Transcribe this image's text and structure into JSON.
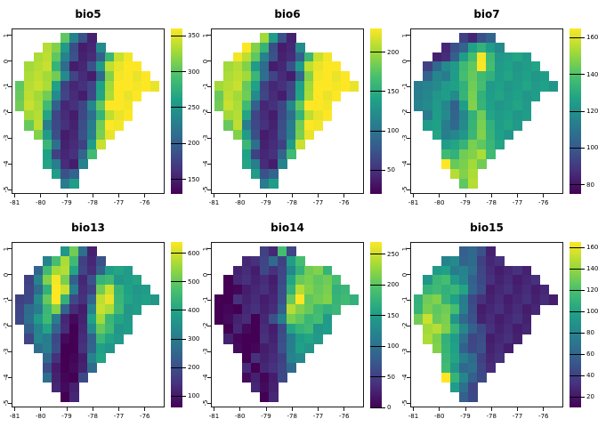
{
  "figure_bg": "#ffffff",
  "colormap": {
    "name": "viridis",
    "stops": [
      "#440154",
      "#46327e",
      "#365c8d",
      "#277f8e",
      "#1fa187",
      "#4ac16d",
      "#a0da39",
      "#fde725"
    ]
  },
  "axes": {
    "x_ticks": [
      -81,
      -80,
      -79,
      -78,
      -77,
      -76
    ],
    "x_range": [
      -81.12,
      -75.24
    ],
    "y_ticks": [
      1,
      0,
      -1,
      -2,
      -3,
      -4,
      -5
    ],
    "y_range": [
      -5.16,
      1.26
    ]
  },
  "grid_encoding": "each panel grid: 16 rows x 16 chars; '.' = no data (outside Ecuador); digit 0-9 = value level mapped linearly from vmin (0) to vmax (9)",
  "chart_data": [
    {
      "type": "heatmap",
      "title": "bio5",
      "vmin": 130,
      "vmax": 360,
      "legend_ticks": [
        350,
        300,
        250,
        200,
        150
      ],
      "grid": [
        ".....7421.......",
        "...8752114......",
        "..88742113689...",
        ".8886311258999..",
        ".88874211379999.",
        "7888521125899999",
        "78874211258999..",
        "7886311247999...",
        ".885211236899...",
        ".78421124799....",
        "..752112479.....",
        "...6311258......",
        "...521136.......",
        "...54114........",
        "....523.........",
        ".....45........."
      ]
    },
    {
      "type": "heatmap",
      "title": "bio6",
      "vmin": 20,
      "vmax": 230,
      "legend_ticks": [
        200,
        150,
        100,
        50
      ],
      "grid": [
        ".....8521.......",
        "...9762114......",
        "..98742113689...",
        ".8875311258999..",
        ".88863211379999.",
        "8887521125899999",
        "78874211258999..",
        "7886311247999...",
        ".885211236899...",
        ".78421124799....",
        "..752112479.....",
        "...6311258......",
        "...521136.......",
        "...54114........",
        "....523.........",
        ".....45........."
      ]
    },
    {
      "type": "heatmap",
      "title": "bio7",
      "vmin": 75,
      "vmax": 165,
      "legend_ticks": [
        160,
        140,
        120,
        100,
        80
      ],
      "grid": [
        ".....2123.......",
        "...1235654......",
        "..11356965555...",
        ".2345679655555..",
        ".34456766555555.",
        "4445567655555555",
        "44554676555555..",
        "4454357655555...",
        ".454346755555...",
        ".55434676555....",
        "..544567655.....",
        "...5567765......",
        "...667786.......",
        "...97787........",
        "....878.........",
        ".....78........."
      ]
    },
    {
      "type": "heatmap",
      "title": "bio13",
      "vmin": 60,
      "vmax": 640,
      "legend_ticks": [
        600,
        500,
        400,
        300,
        200,
        100
      ],
      "grid": [
        ".....5731.......",
        "...4686212......",
        "..36885213555...",
        ".2479731266555..",
        ".23698412786555.",
        "2247962138965555",
        "23467311488655..",
        "2356410158655...",
        ".345310147655...",
        ".24420013655....",
        "..342001355.....",
        "...3100145......",
        "...210013.......",
        "...31002........",
        "....101.........",
        ".....01........."
      ]
    },
    {
      "type": "heatmap",
      "title": "bio14",
      "vmin": 0,
      "vmax": 270,
      "legend_ticks": [
        250,
        200,
        150,
        100,
        50,
        0
      ],
      "grid": [
        ".....2162.......",
        "...1123256......",
        "..11121246776...",
        ".0111112577776..",
        ".00111126877766.",
        "0011111279777666",
        "00011113877666..",
        "0011012477665...",
        ".010011256655...",
        ".10001124555....",
        "..000112455.....",
        "...0111244......",
        "...101123.......",
        "...01012........",
        "....101.........",
        ".....01........."
      ]
    },
    {
      "type": "heatmap",
      "title": "bio15",
      "vmin": 10,
      "vmax": 165,
      "legend_ticks": [
        160,
        140,
        120,
        100,
        80,
        60,
        40,
        20
      ],
      "grid": [
        ".....3321.......",
        "...4433211......",
        "..55443211111...",
        ".5665432111111..",
        ".66665321111111.",
        "6776542111111111",
        "67776421111111..",
        "7877532111111...",
        ".887643211111...",
        ".87653221111....",
        "..765322111.....",
        "...6543211......",
        "...653321.......",
        "...96432........",
        "....532.........",
        ".....32........."
      ]
    }
  ]
}
